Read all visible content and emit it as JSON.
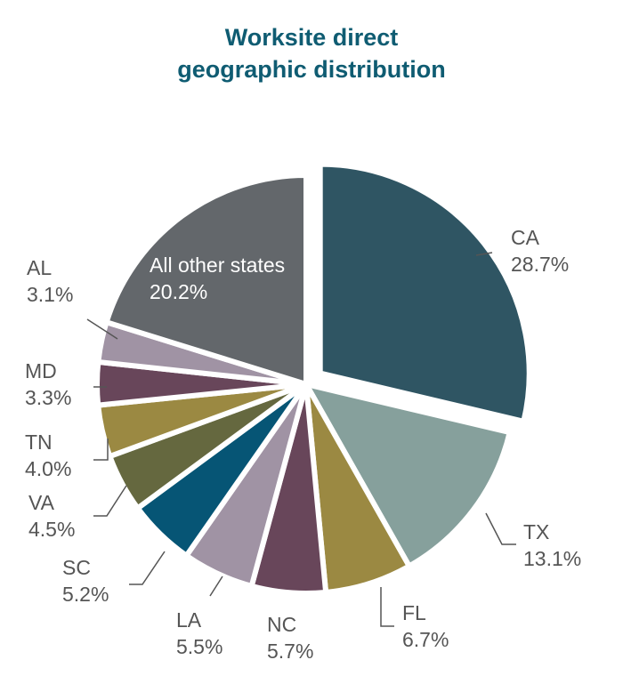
{
  "chart_data": {
    "type": "pie",
    "title_lines": [
      "Worksite direct",
      "geographic distribution"
    ],
    "slices": [
      {
        "label": "CA",
        "value": 28.7,
        "display": "28.7%",
        "color": "#2f5563",
        "exploded": true
      },
      {
        "label": "TX",
        "value": 13.1,
        "display": "13.1%",
        "color": "#86a09c"
      },
      {
        "label": "FL",
        "value": 6.7,
        "display": "6.7%",
        "color": "#9b8942"
      },
      {
        "label": "NC",
        "value": 5.7,
        "display": "5.7%",
        "color": "#68465a"
      },
      {
        "label": "LA",
        "value": 5.5,
        "display": "5.5%",
        "color": "#a093a4"
      },
      {
        "label": "SC",
        "value": 5.2,
        "display": "5.2%",
        "color": "#065575"
      },
      {
        "label": "VA",
        "value": 4.5,
        "display": "4.5%",
        "color": "#65683f"
      },
      {
        "label": "TN",
        "value": 4.0,
        "display": "4.0%",
        "color": "#9b8942"
      },
      {
        "label": "MD",
        "value": 3.3,
        "display": "3.3%",
        "color": "#68465a"
      },
      {
        "label": "AL",
        "value": 3.1,
        "display": "3.1%",
        "color": "#a093a4"
      },
      {
        "label": "All other states",
        "value": 20.2,
        "display": "20.2%",
        "color": "#63676b",
        "label_inside": true
      }
    ]
  }
}
